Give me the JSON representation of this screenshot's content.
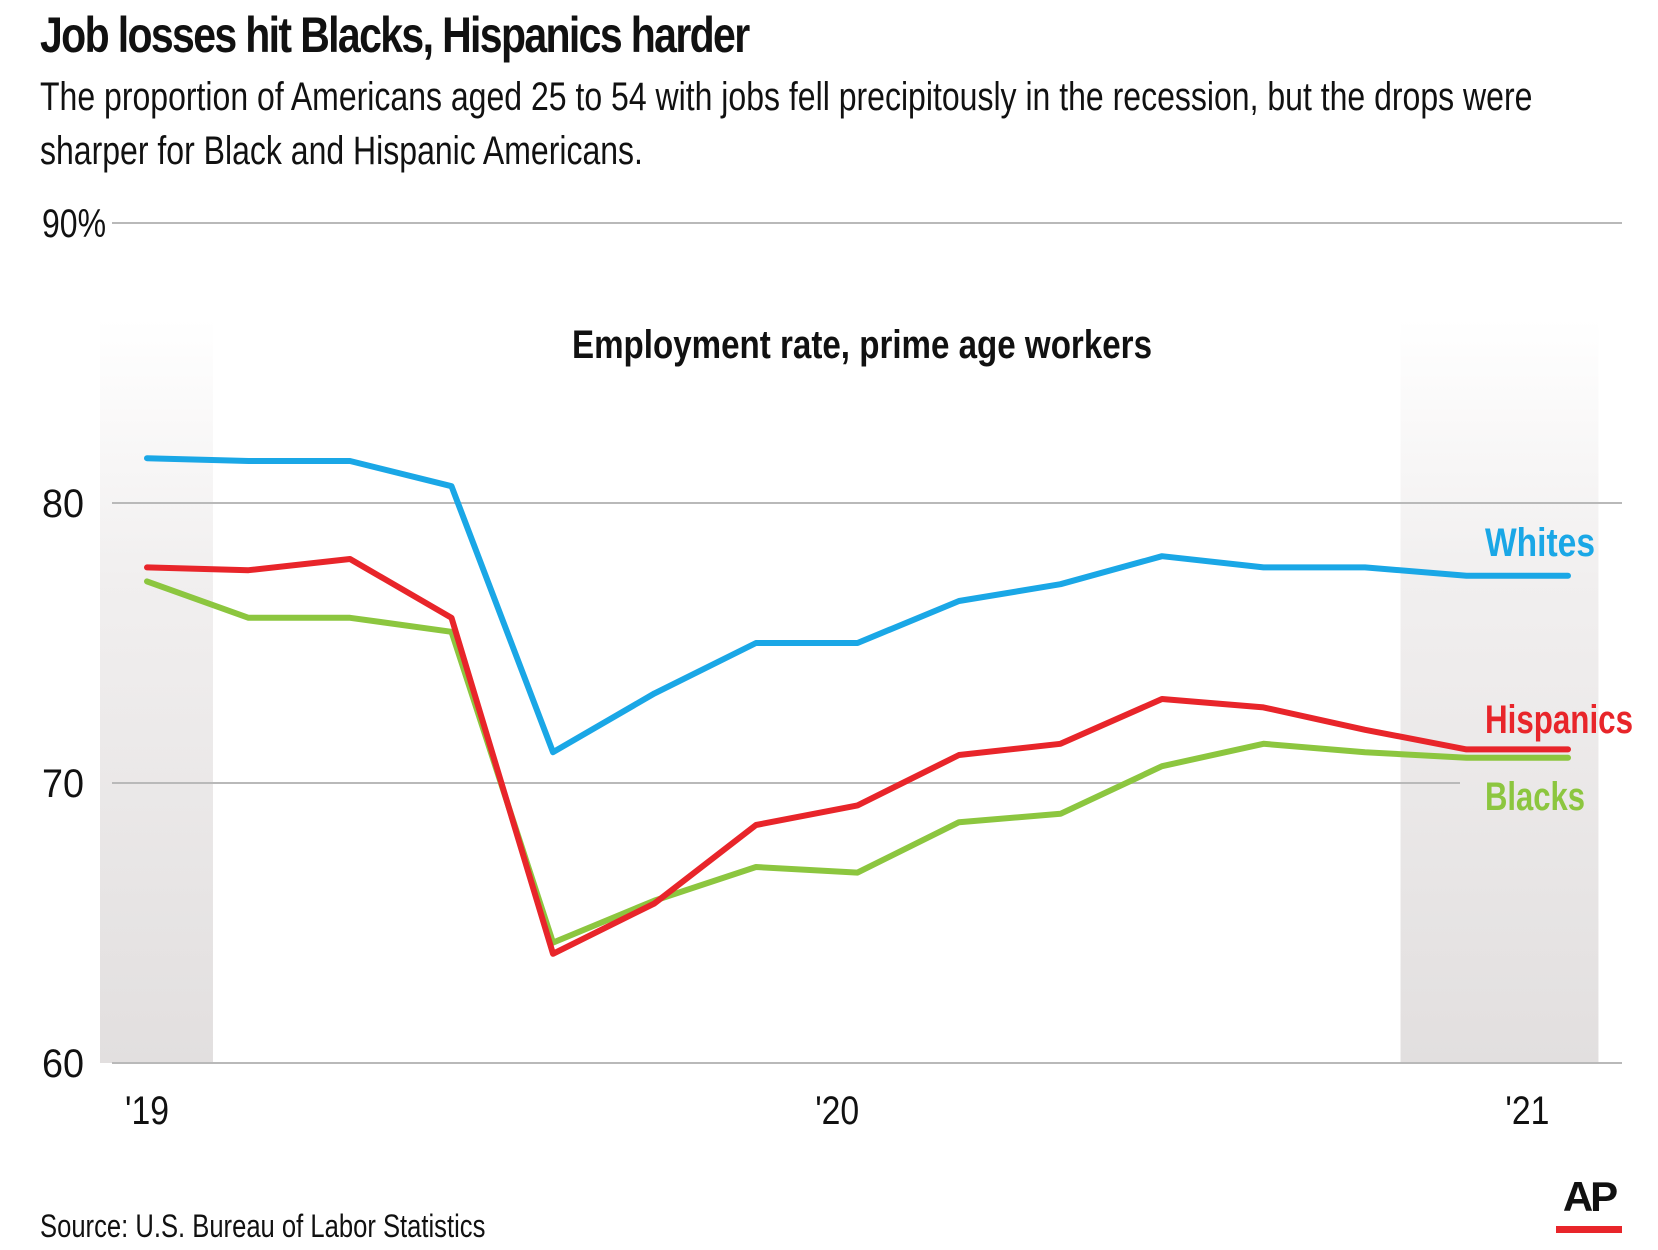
{
  "header": {
    "title": "Job losses hit Blacks, Hispanics harder",
    "subtitle_line1": "The proportion of Americans aged 25 to 54 with jobs fell precipitously in the recession, but the drops were",
    "subtitle_line2": "sharper for Black and Hispanic Americans."
  },
  "footer": {
    "source": "Source: U.S. Bureau of Labor Statistics",
    "logo": "AP"
  },
  "colors": {
    "whites": "#1aa7e6",
    "hispanics": "#e8252a",
    "blacks": "#8cc63f",
    "grid": "#b9b9b9",
    "shade": "#e6e3e3",
    "text": "#111111"
  },
  "chart_data": {
    "type": "line",
    "title": "Employment rate, prime age workers",
    "xlabel": "",
    "ylabel": "",
    "ylim": [
      60,
      90
    ],
    "yticks": [
      {
        "value": 90,
        "label": "90%"
      },
      {
        "value": 80,
        "label": "80"
      },
      {
        "value": 70,
        "label": "70"
      },
      {
        "value": 60,
        "label": "60"
      }
    ],
    "x": [
      "Jan 2019",
      "Mar 2019",
      "May 2019",
      "Jul 2019",
      "Sep 2019",
      "Nov 2019",
      "Jan 2020",
      "Mar 2020",
      "May 2020",
      "Jul 2020",
      "Sep 2020",
      "Nov 2020",
      "Jan 2021",
      "Mar 2021",
      "May 2021"
    ],
    "xticks": [
      {
        "index": 0,
        "label": "'19"
      },
      {
        "index": 6.8,
        "label": "'20"
      },
      {
        "index": 13.6,
        "label": "'21"
      }
    ],
    "shaded_regions": [
      {
        "from": -0.6,
        "to": 0.65
      },
      {
        "from": 12.35,
        "to": 14.3
      }
    ],
    "series": [
      {
        "name": "Whites",
        "key": "whites",
        "values": [
          81.6,
          81.5,
          81.5,
          80.6,
          71.1,
          73.2,
          75.0,
          75.0,
          76.5,
          77.1,
          78.1,
          77.7,
          77.7,
          77.4,
          77.4
        ]
      },
      {
        "name": "Hispanics",
        "key": "hispanics",
        "values": [
          77.7,
          77.6,
          78.0,
          75.9,
          63.9,
          65.7,
          68.5,
          69.2,
          71.0,
          71.4,
          73.0,
          72.7,
          71.9,
          71.2,
          71.2
        ]
      },
      {
        "name": "Blacks",
        "key": "blacks",
        "values": [
          77.2,
          75.9,
          75.9,
          75.4,
          64.3,
          65.8,
          67.0,
          66.8,
          68.6,
          68.9,
          70.6,
          71.4,
          71.1,
          70.9,
          70.9
        ]
      }
    ]
  }
}
